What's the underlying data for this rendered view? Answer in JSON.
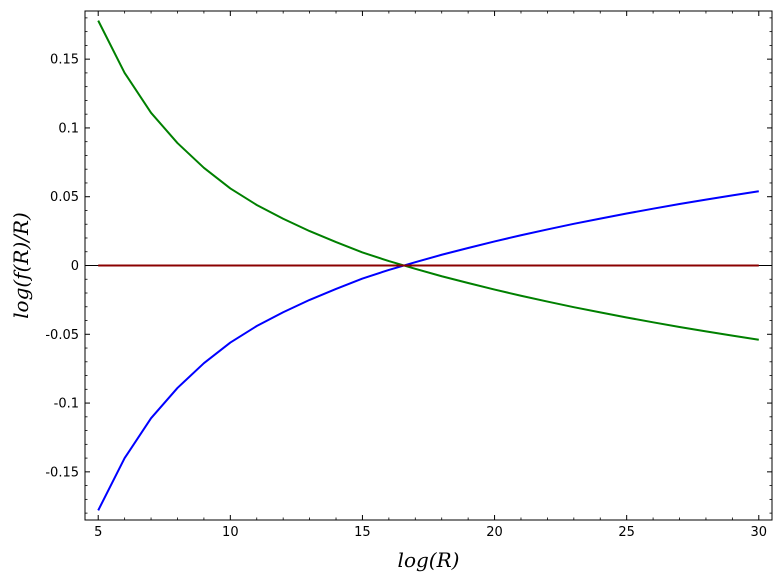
{
  "chart_data": {
    "type": "line",
    "title": "",
    "xlabel": "log(R)",
    "ylabel": "log(f(R)/R)",
    "xlim": [
      4.5,
      30.5
    ],
    "ylim": [
      -0.185,
      0.185
    ],
    "x_ticks": [
      5,
      10,
      15,
      20,
      25,
      30
    ],
    "x_tick_labels": [
      "5",
      "10",
      "15",
      "20",
      "25",
      "30"
    ],
    "y_ticks": [
      -0.15,
      -0.1,
      -0.05,
      0,
      0.05,
      0.1,
      0.15
    ],
    "y_tick_labels": [
      "-0.15",
      "-0.1",
      "-0.05",
      "0",
      "0.05",
      "0.1",
      "0.15"
    ],
    "grid": false,
    "x": [
      5,
      6,
      7,
      8,
      9,
      10,
      11,
      12,
      13,
      14,
      15,
      16,
      17,
      18,
      19,
      20,
      21,
      22,
      23,
      24,
      25,
      26,
      27,
      28,
      29,
      30
    ],
    "series": [
      {
        "color": "#0000ff",
        "values": [
          -0.178,
          -0.14,
          -0.111,
          -0.089,
          -0.071,
          -0.056,
          -0.044,
          -0.034,
          -0.025,
          -0.017,
          -0.0095,
          -0.0032,
          0.0024,
          0.0078,
          0.0127,
          0.0175,
          0.022,
          0.0262,
          0.0303,
          0.0341,
          0.0378,
          0.0413,
          0.0447,
          0.0479,
          0.051,
          0.054
        ]
      },
      {
        "color": "#008000",
        "values": [
          0.178,
          0.14,
          0.111,
          0.089,
          0.071,
          0.056,
          0.044,
          0.034,
          0.025,
          0.017,
          0.0095,
          0.0032,
          -0.0024,
          -0.0078,
          -0.0127,
          -0.0175,
          -0.022,
          -0.0262,
          -0.0303,
          -0.0341,
          -0.0378,
          -0.0413,
          -0.0447,
          -0.0479,
          -0.051,
          -0.054
        ]
      },
      {
        "color": "#8b0000",
        "values": [
          0,
          0,
          0,
          0,
          0,
          0,
          0,
          0,
          0,
          0,
          0,
          0,
          0,
          0,
          0,
          0,
          0,
          0,
          0,
          0,
          0,
          0,
          0,
          0,
          0,
          0
        ]
      }
    ]
  }
}
